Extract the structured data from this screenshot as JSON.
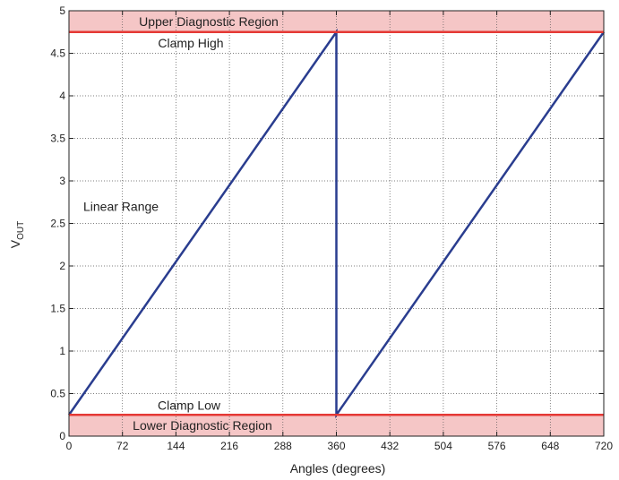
{
  "chart_data": {
    "type": "line",
    "xlabel": "Angles (degrees)",
    "ylabel_main": "V",
    "ylabel_sub": "OUT",
    "xlim": [
      0,
      720
    ],
    "ylim": [
      0,
      5
    ],
    "xticks": [
      0,
      72,
      144,
      216,
      288,
      360,
      432,
      504,
      576,
      648,
      720
    ],
    "yticks": [
      0,
      0.5,
      1,
      1.5,
      2,
      2.5,
      3,
      3.5,
      4,
      4.5,
      5
    ],
    "ytick_labels": [
      "0",
      "0.5",
      "1",
      "1.5",
      "2",
      "2.5",
      "3",
      "3.5",
      "4",
      "4.5",
      "5"
    ],
    "grid": true,
    "series": [
      {
        "color": "#2a3d8f",
        "x": [
          0,
          360,
          360,
          720
        ],
        "y": [
          0.25,
          4.75,
          0.25,
          4.75
        ]
      }
    ],
    "lines": [
      {
        "label": "Clamp High",
        "y": 4.75,
        "color": "#e53935"
      },
      {
        "label": "Clamp Low",
        "y": 0.25,
        "color": "#e53935"
      }
    ],
    "regions": [
      {
        "label": "Upper Diagnostic Region",
        "y0": 4.75,
        "y1": 5.0,
        "color": "#f5c6c6"
      },
      {
        "label": "Lower Diagnostic Region",
        "y0": 0.0,
        "y1": 0.25,
        "color": "#f5c6c6"
      }
    ],
    "annotations": [
      {
        "text": "Linear Range",
        "x": 70,
        "y": 2.65
      }
    ]
  }
}
